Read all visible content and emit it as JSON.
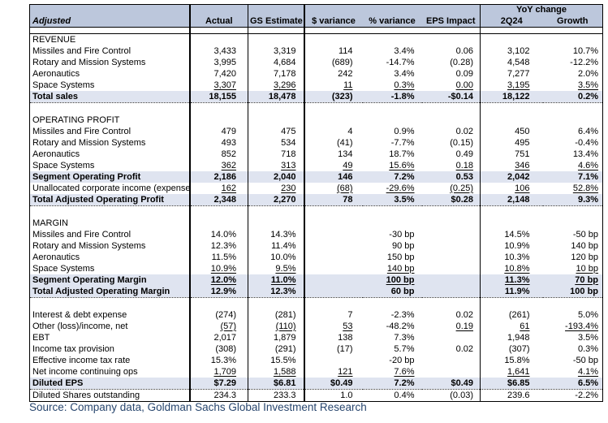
{
  "table": {
    "header": {
      "adjusted": "Adjusted",
      "actual": "Actual",
      "gs_estimate": "GS Estimate",
      "dollar_variance": "$ variance",
      "pct_variance": "% variance",
      "eps_impact": "EPS Impact",
      "yoy_change": "YoY change",
      "q2_24": "2Q24",
      "growth": "Growth"
    },
    "rows": [
      {
        "type": "section",
        "label": "REVENUE"
      },
      {
        "type": "data",
        "label": "Missiles and Fire Control",
        "values": [
          "3,433",
          "3,319",
          "114",
          "3.4%",
          "0.06",
          "3,102",
          "10.7%"
        ]
      },
      {
        "type": "data",
        "label": "Rotary and Mission Systems",
        "values": [
          "3,995",
          "4,684",
          "(689)",
          "-14.7%",
          "(0.28)",
          "4,548",
          "-12.2%"
        ]
      },
      {
        "type": "data",
        "label": "Aeronautics",
        "values": [
          "7,420",
          "7,178",
          "242",
          "3.4%",
          "0.09",
          "7,277",
          "2.0%"
        ]
      },
      {
        "type": "data",
        "label": "Space Systems",
        "values": [
          "3,307",
          "3,296",
          "11",
          "0.3%",
          "0.00",
          "3,195",
          "3.5%"
        ],
        "u": [
          0,
          1,
          2,
          3,
          4,
          5,
          6
        ]
      },
      {
        "type": "total",
        "label": "Total sales",
        "values": [
          "18,155",
          "18,478",
          "(323)",
          "-1.8%",
          "-$0.14",
          "18,122",
          "0.2%"
        ],
        "dotted": true
      },
      {
        "type": "blank"
      },
      {
        "type": "section",
        "label": "OPERATING PROFIT"
      },
      {
        "type": "data",
        "label": "Missiles and Fire Control",
        "values": [
          "479",
          "475",
          "4",
          "0.9%",
          "0.02",
          "450",
          "6.4%"
        ]
      },
      {
        "type": "data",
        "label": "Rotary and Mission Systems",
        "values": [
          "493",
          "534",
          "(41)",
          "-7.7%",
          "(0.15)",
          "495",
          "-0.4%"
        ]
      },
      {
        "type": "data",
        "label": "Aeronautics",
        "values": [
          "852",
          "718",
          "134",
          "18.7%",
          "0.49",
          "751",
          "13.4%"
        ]
      },
      {
        "type": "data",
        "label": "Space Systems",
        "values": [
          "362",
          "313",
          "49",
          "15.6%",
          "0.18",
          "346",
          "4.6%"
        ],
        "u": [
          0,
          1,
          2,
          3,
          4,
          5,
          6
        ]
      },
      {
        "type": "total",
        "label": "Segment Operating Profit",
        "values": [
          "2,186",
          "2,040",
          "146",
          "7.2%",
          "0.53",
          "2,042",
          "7.1%"
        ]
      },
      {
        "type": "data",
        "label": "Unallocated corporate income (expenses)",
        "values": [
          "162",
          "230",
          "(68)",
          "-29.6%",
          "(0.25)",
          "106",
          "52.8%"
        ],
        "u": [
          0,
          1,
          2,
          3,
          4,
          5,
          6
        ]
      },
      {
        "type": "total",
        "label": "Total Adjusted Operating Profit",
        "values": [
          "2,348",
          "2,270",
          "78",
          "3.5%",
          "$0.28",
          "2,148",
          "9.3%"
        ],
        "dotted": true
      },
      {
        "type": "blank"
      },
      {
        "type": "section",
        "label": "MARGIN"
      },
      {
        "type": "data",
        "label": "Missiles and Fire Control",
        "values": [
          "14.0%",
          "14.3%",
          "",
          "-30 bp",
          "",
          "14.5%",
          "-50 bp"
        ]
      },
      {
        "type": "data",
        "label": "Rotary and Mission Systems",
        "values": [
          "12.3%",
          "11.4%",
          "",
          "90 bp",
          "",
          "10.9%",
          "140 bp"
        ]
      },
      {
        "type": "data",
        "label": "Aeronautics",
        "values": [
          "11.5%",
          "10.0%",
          "",
          "150 bp",
          "",
          "10.3%",
          "120 bp"
        ]
      },
      {
        "type": "data",
        "label": "Space Systems",
        "values": [
          "10.9%",
          "9.5%",
          "",
          "140 bp",
          "",
          "10.8%",
          "10 bp"
        ],
        "u": [
          0,
          1,
          3,
          5,
          6
        ]
      },
      {
        "type": "total",
        "label": "Segment Operating Margin",
        "values": [
          "12.0%",
          "11.0%",
          "",
          "100 bp",
          "",
          "11.3%",
          "70 bp"
        ],
        "u": [
          0,
          1,
          3,
          5,
          6
        ]
      },
      {
        "type": "total",
        "label": "Total Adjusted Operating Margin",
        "values": [
          "12.9%",
          "12.3%",
          "",
          "60 bp",
          "",
          "11.9%",
          "100 bp"
        ],
        "dotted": true
      },
      {
        "type": "blank"
      },
      {
        "type": "data",
        "label": "Interest & debt expense",
        "values": [
          "(274)",
          "(281)",
          "7",
          "-2.3%",
          "0.02",
          "(261)",
          "5.0%"
        ]
      },
      {
        "type": "data",
        "label": "Other (loss)/income, net",
        "values": [
          "(57)",
          "(110)",
          "53",
          "-48.2%",
          "0.19",
          "61",
          "-193.4%"
        ],
        "u": [
          0,
          1,
          2,
          4,
          5,
          6
        ]
      },
      {
        "type": "data",
        "label": "EBT",
        "values": [
          "2,017",
          "1,879",
          "138",
          "7.3%",
          "",
          "1,948",
          "3.5%"
        ]
      },
      {
        "type": "data",
        "label": "Income tax provision",
        "values": [
          "(308)",
          "(291)",
          "(17)",
          "5.7%",
          "0.02",
          "(307)",
          "0.3%"
        ]
      },
      {
        "type": "data",
        "label": "Effective income tax rate",
        "values": [
          "15.3%",
          "15.5%",
          "",
          "-20 bp",
          "",
          "15.8%",
          "-50 bp"
        ]
      },
      {
        "type": "data",
        "label": "Net income continuing ops",
        "values": [
          "1,709",
          "1,588",
          "121",
          "7.6%",
          "",
          "1,641",
          "4.1%"
        ],
        "u": [
          0,
          1,
          2,
          3,
          5,
          6
        ]
      },
      {
        "type": "total",
        "label": "Diluted EPS",
        "values": [
          "$7.29",
          "$6.81",
          "$0.49",
          "7.2%",
          "$0.49",
          "$6.85",
          "6.5%"
        ],
        "dotted": true
      },
      {
        "type": "data",
        "label": "Diluted Shares outstanding",
        "values": [
          "234.3",
          "233.3",
          "1.0",
          "0.4%",
          "(0.03)",
          "239.6",
          "-2.2%"
        ]
      }
    ]
  },
  "source_note": "Source: Company data, Goldman Sachs Global Investment Research",
  "colors": {
    "header_bg": "#bcc7dc",
    "total_row_bg": "#dfe4f0",
    "border": "#000000",
    "source_text": "#28466e"
  }
}
